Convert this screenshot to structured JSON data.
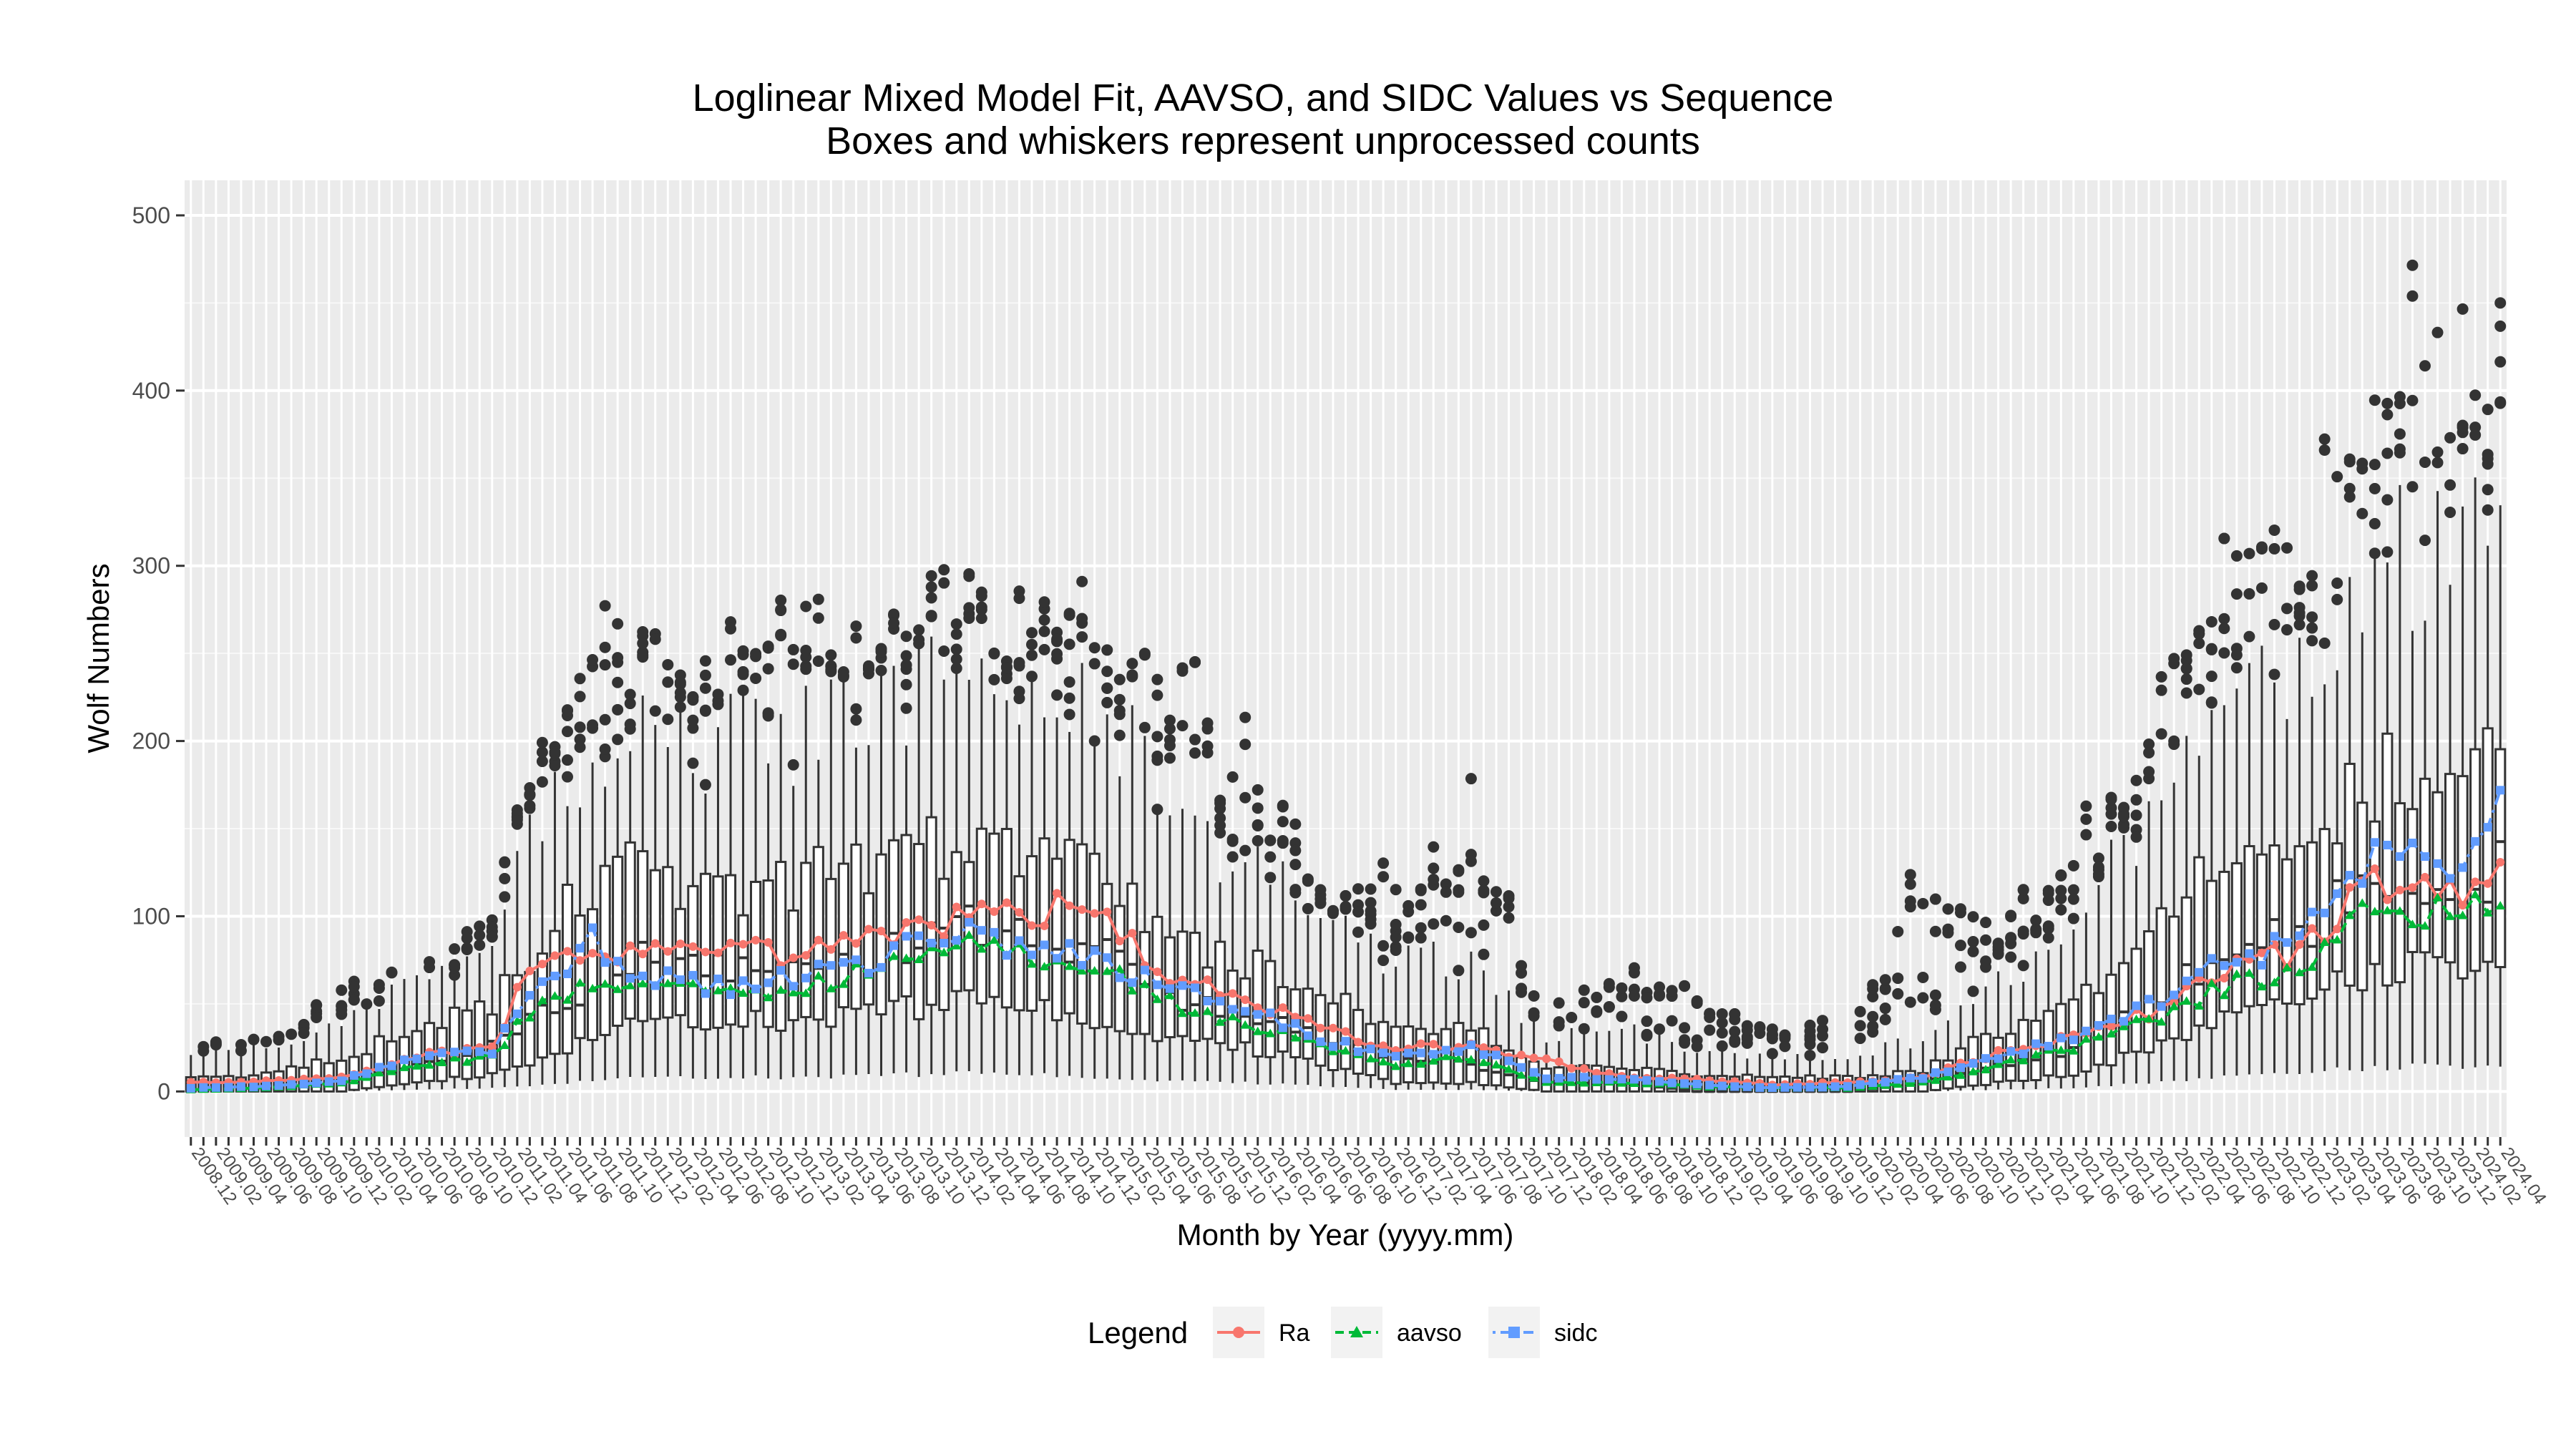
{
  "chart_data": {
    "type": "box",
    "title": "Loglinear Mixed Model Fit, AAVSO, and SIDC Values vs Sequence",
    "subtitle": "Boxes and whiskers represent unprocessed counts",
    "xlabel": "Month by Year (yyyy.mm)",
    "ylabel": "Wolf Numbers",
    "ylim": [
      -26,
      520
    ],
    "yticks": [
      0,
      100,
      200,
      300,
      400,
      500
    ],
    "x_range": [
      "2008.12",
      "2024.04"
    ],
    "x_tick_interval_months": 2,
    "grid": true,
    "legend": {
      "title": "Legend",
      "position": "bottom",
      "entries": [
        {
          "name": "Ra",
          "color": "#f8766d",
          "marker": "circle",
          "line": "solid"
        },
        {
          "name": "aavso",
          "color": "#00ba38",
          "marker": "triangle",
          "line": "dashed"
        },
        {
          "name": "sidc",
          "color": "#619cff",
          "marker": "square",
          "line": "dotdash"
        }
      ]
    },
    "box_anchors": [
      {
        "x": "2008.12",
        "q1": 0,
        "median": 0,
        "q3": 8,
        "upper": 20,
        "outlier_max": 32
      },
      {
        "x": "2009.06",
        "q1": 0,
        "median": 2,
        "q3": 10,
        "upper": 25,
        "outlier_max": 30
      },
      {
        "x": "2009.12",
        "q1": 0,
        "median": 5,
        "q3": 20,
        "upper": 40,
        "outlier_max": 60
      },
      {
        "x": "2010.06",
        "q1": 5,
        "median": 15,
        "q3": 35,
        "upper": 60,
        "outlier_max": 80
      },
      {
        "x": "2010.12",
        "q1": 10,
        "median": 25,
        "q3": 50,
        "upper": 90,
        "outlier_max": 110
      },
      {
        "x": "2011.03",
        "q1": 15,
        "median": 40,
        "q3": 80,
        "upper": 150,
        "outlier_max": 215
      },
      {
        "x": "2011.08",
        "q1": 30,
        "median": 60,
        "q3": 120,
        "upper": 190,
        "outlier_max": 285
      },
      {
        "x": "2011.12",
        "q1": 40,
        "median": 75,
        "q3": 125,
        "upper": 200,
        "outlier_max": 285
      },
      {
        "x": "2012.06",
        "q1": 40,
        "median": 70,
        "q3": 115,
        "upper": 200,
        "outlier_max": 280
      },
      {
        "x": "2012.12",
        "q1": 40,
        "median": 70,
        "q3": 120,
        "upper": 200,
        "outlier_max": 285
      },
      {
        "x": "2013.06",
        "q1": 45,
        "median": 80,
        "q3": 125,
        "upper": 210,
        "outlier_max": 270
      },
      {
        "x": "2013.12",
        "q1": 50,
        "median": 90,
        "q3": 140,
        "upper": 230,
        "outlier_max": 300
      },
      {
        "x": "2014.03",
        "q1": 55,
        "median": 95,
        "q3": 140,
        "upper": 240,
        "outlier_max": 318
      },
      {
        "x": "2014.06",
        "q1": 50,
        "median": 90,
        "q3": 140,
        "upper": 235,
        "outlier_max": 295
      },
      {
        "x": "2014.12",
        "q1": 40,
        "median": 80,
        "q3": 130,
        "upper": 225,
        "outlier_max": 285
      },
      {
        "x": "2015.06",
        "q1": 30,
        "median": 55,
        "q3": 90,
        "upper": 160,
        "outlier_max": 250
      },
      {
        "x": "2015.12",
        "q1": 25,
        "median": 45,
        "q3": 75,
        "upper": 130,
        "outlier_max": 210
      },
      {
        "x": "2016.06",
        "q1": 15,
        "median": 30,
        "q3": 55,
        "upper": 100,
        "outlier_max": 130
      },
      {
        "x": "2016.12",
        "q1": 5,
        "median": 20,
        "q3": 40,
        "upper": 75,
        "outlier_max": 130
      },
      {
        "x": "2017.06",
        "q1": 5,
        "median": 15,
        "q3": 35,
        "upper": 75,
        "outlier_max": 185
      },
      {
        "x": "2017.12",
        "q1": 0,
        "median": 5,
        "q3": 15,
        "upper": 30,
        "outlier_max": 45
      },
      {
        "x": "2018.06",
        "q1": 0,
        "median": 5,
        "q3": 15,
        "upper": 35,
        "outlier_max": 72
      },
      {
        "x": "2018.12",
        "q1": 0,
        "median": 0,
        "q3": 10,
        "upper": 25,
        "outlier_max": 56
      },
      {
        "x": "2019.06",
        "q1": 0,
        "median": 0,
        "q3": 8,
        "upper": 20,
        "outlier_max": 38
      },
      {
        "x": "2019.12",
        "q1": 0,
        "median": 0,
        "q3": 8,
        "upper": 20,
        "outlier_max": 40
      },
      {
        "x": "2020.06",
        "q1": 0,
        "median": 5,
        "q3": 12,
        "upper": 30,
        "outlier_max": 145
      },
      {
        "x": "2020.12",
        "q1": 5,
        "median": 15,
        "q3": 35,
        "upper": 60,
        "outlier_max": 100
      },
      {
        "x": "2021.06",
        "q1": 10,
        "median": 25,
        "q3": 50,
        "upper": 90,
        "outlier_max": 145
      },
      {
        "x": "2021.12",
        "q1": 25,
        "median": 50,
        "q3": 90,
        "upper": 160,
        "outlier_max": 230
      },
      {
        "x": "2022.06",
        "q1": 40,
        "median": 80,
        "q3": 130,
        "upper": 230,
        "outlier_max": 315
      },
      {
        "x": "2022.12",
        "q1": 50,
        "median": 90,
        "q3": 140,
        "upper": 250,
        "outlier_max": 340
      },
      {
        "x": "2023.06",
        "q1": 70,
        "median": 120,
        "q3": 180,
        "upper": 300,
        "outlier_max": 495
      },
      {
        "x": "2023.12",
        "q1": 70,
        "median": 120,
        "q3": 185,
        "upper": 310,
        "outlier_max": 465
      },
      {
        "x": "2024.04",
        "q1": 75,
        "median": 125,
        "q3": 190,
        "upper": 330,
        "outlier_max": 480
      }
    ],
    "series": [
      {
        "name": "Ra",
        "anchors": [
          {
            "x": "2008.12",
            "y": 5
          },
          {
            "x": "2009.06",
            "y": 6
          },
          {
            "x": "2009.12",
            "y": 8
          },
          {
            "x": "2010.06",
            "y": 20
          },
          {
            "x": "2010.12",
            "y": 25
          },
          {
            "x": "2011.03",
            "y": 70
          },
          {
            "x": "2011.08",
            "y": 75
          },
          {
            "x": "2011.12",
            "y": 78
          },
          {
            "x": "2012.06",
            "y": 78
          },
          {
            "x": "2012.12",
            "y": 80
          },
          {
            "x": "2013.06",
            "y": 85
          },
          {
            "x": "2013.12",
            "y": 95
          },
          {
            "x": "2014.03",
            "y": 105
          },
          {
            "x": "2014.06",
            "y": 102
          },
          {
            "x": "2014.12",
            "y": 105
          },
          {
            "x": "2015.06",
            "y": 65
          },
          {
            "x": "2015.12",
            "y": 55
          },
          {
            "x": "2016.06",
            "y": 35
          },
          {
            "x": "2016.12",
            "y": 25
          },
          {
            "x": "2017.06",
            "y": 25
          },
          {
            "x": "2017.12",
            "y": 18
          },
          {
            "x": "2018.06",
            "y": 8
          },
          {
            "x": "2018.12",
            "y": 7
          },
          {
            "x": "2019.06",
            "y": 4
          },
          {
            "x": "2019.12",
            "y": 5
          },
          {
            "x": "2020.06",
            "y": 8
          },
          {
            "x": "2020.12",
            "y": 22
          },
          {
            "x": "2021.06",
            "y": 30
          },
          {
            "x": "2021.12",
            "y": 45
          },
          {
            "x": "2022.06",
            "y": 70
          },
          {
            "x": "2022.12",
            "y": 80
          },
          {
            "x": "2023.06",
            "y": 120
          },
          {
            "x": "2023.12",
            "y": 115
          },
          {
            "x": "2024.04",
            "y": 125
          }
        ]
      },
      {
        "name": "aavso",
        "anchors": [
          {
            "x": "2008.12",
            "y": 1
          },
          {
            "x": "2009.06",
            "y": 2
          },
          {
            "x": "2009.12",
            "y": 5
          },
          {
            "x": "2010.06",
            "y": 15
          },
          {
            "x": "2010.12",
            "y": 20
          },
          {
            "x": "2011.03",
            "y": 45
          },
          {
            "x": "2011.08",
            "y": 65
          },
          {
            "x": "2011.12",
            "y": 60
          },
          {
            "x": "2012.06",
            "y": 55
          },
          {
            "x": "2012.12",
            "y": 60
          },
          {
            "x": "2013.06",
            "y": 70
          },
          {
            "x": "2013.12",
            "y": 80
          },
          {
            "x": "2014.03",
            "y": 85
          },
          {
            "x": "2014.06",
            "y": 78
          },
          {
            "x": "2014.12",
            "y": 75
          },
          {
            "x": "2015.06",
            "y": 50
          },
          {
            "x": "2015.12",
            "y": 40
          },
          {
            "x": "2016.06",
            "y": 25
          },
          {
            "x": "2016.12",
            "y": 15
          },
          {
            "x": "2017.06",
            "y": 20
          },
          {
            "x": "2017.12",
            "y": 5
          },
          {
            "x": "2018.06",
            "y": 5
          },
          {
            "x": "2018.12",
            "y": 3
          },
          {
            "x": "2019.06",
            "y": 2
          },
          {
            "x": "2019.12",
            "y": 2
          },
          {
            "x": "2020.06",
            "y": 5
          },
          {
            "x": "2020.12",
            "y": 15
          },
          {
            "x": "2021.06",
            "y": 25
          },
          {
            "x": "2021.12",
            "y": 40
          },
          {
            "x": "2022.06",
            "y": 60
          },
          {
            "x": "2022.12",
            "y": 70
          },
          {
            "x": "2023.06",
            "y": 105
          },
          {
            "x": "2023.12",
            "y": 100
          },
          {
            "x": "2024.04",
            "y": 115
          }
        ]
      },
      {
        "name": "sidc",
        "anchors": [
          {
            "x": "2008.12",
            "y": 2
          },
          {
            "x": "2009.06",
            "y": 3
          },
          {
            "x": "2009.12",
            "y": 6
          },
          {
            "x": "2010.06",
            "y": 20
          },
          {
            "x": "2010.12",
            "y": 22
          },
          {
            "x": "2011.03",
            "y": 55
          },
          {
            "x": "2011.08",
            "y": 85
          },
          {
            "x": "2011.12",
            "y": 65
          },
          {
            "x": "2012.06",
            "y": 60
          },
          {
            "x": "2012.12",
            "y": 65
          },
          {
            "x": "2013.06",
            "y": 75
          },
          {
            "x": "2013.12",
            "y": 88
          },
          {
            "x": "2014.03",
            "y": 90
          },
          {
            "x": "2014.06",
            "y": 80
          },
          {
            "x": "2014.12",
            "y": 78
          },
          {
            "x": "2015.06",
            "y": 60
          },
          {
            "x": "2015.12",
            "y": 48
          },
          {
            "x": "2016.06",
            "y": 30
          },
          {
            "x": "2016.12",
            "y": 20
          },
          {
            "x": "2017.06",
            "y": 25
          },
          {
            "x": "2017.12",
            "y": 8
          },
          {
            "x": "2018.06",
            "y": 7
          },
          {
            "x": "2018.12",
            "y": 4
          },
          {
            "x": "2019.06",
            "y": 2
          },
          {
            "x": "2019.12",
            "y": 3
          },
          {
            "x": "2020.06",
            "y": 8
          },
          {
            "x": "2020.12",
            "y": 20
          },
          {
            "x": "2021.06",
            "y": 30
          },
          {
            "x": "2021.12",
            "y": 48
          },
          {
            "x": "2022.06",
            "y": 75
          },
          {
            "x": "2022.12",
            "y": 85
          },
          {
            "x": "2023.06",
            "y": 140
          },
          {
            "x": "2023.12",
            "y": 125
          },
          {
            "x": "2024.04",
            "y": 170
          }
        ]
      }
    ]
  }
}
